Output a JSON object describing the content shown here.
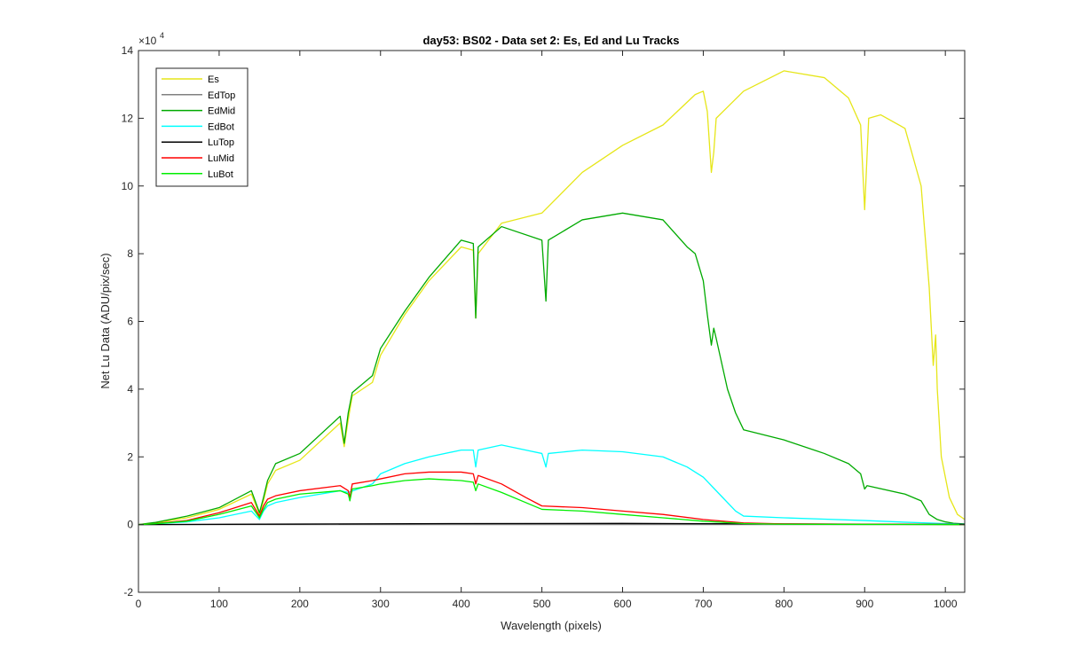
{
  "chart_data": {
    "type": "line",
    "title": "day53: BS02 - Data set 2: Es, Ed and Lu Tracks",
    "xlabel": "Wavelength (pixels)",
    "ylabel": "Net Lu Data (ADU/pix/sec)",
    "y_exponent_label": "×10",
    "y_exponent": "4",
    "xlim": [
      0,
      1024
    ],
    "ylim": [
      -20000,
      140000
    ],
    "xticks": [
      0,
      100,
      200,
      300,
      400,
      500,
      600,
      700,
      800,
      900,
      1000
    ],
    "yticks": [
      -20000,
      0,
      20000,
      40000,
      60000,
      80000,
      100000,
      120000,
      140000
    ],
    "yticklabels": [
      "-2",
      "0",
      "2",
      "4",
      "6",
      "8",
      "10",
      "12",
      "14"
    ],
    "grid": false,
    "legend_position": "top-left",
    "series": [
      {
        "name": "Es",
        "color": "#e6e619",
        "x": [
          0,
          20,
          60,
          100,
          140,
          150,
          155,
          160,
          170,
          200,
          250,
          255,
          260,
          265,
          290,
          300,
          330,
          360,
          400,
          415,
          418,
          421,
          450,
          500,
          550,
          600,
          650,
          690,
          700,
          705,
          710,
          713,
          716,
          750,
          800,
          850,
          880,
          895,
          900,
          905,
          920,
          950,
          970,
          980,
          985,
          988,
          990,
          995,
          1005,
          1015,
          1024
        ],
        "y": [
          0,
          500,
          2000,
          4500,
          9000,
          3000,
          7000,
          12000,
          16000,
          19000,
          30000,
          23000,
          31000,
          38000,
          42000,
          50000,
          62000,
          72000,
          82000,
          81000,
          61000,
          80000,
          89000,
          92000,
          104000,
          112000,
          118000,
          127000,
          128000,
          122000,
          104000,
          110000,
          120000,
          128000,
          134000,
          132000,
          126000,
          118000,
          93000,
          120000,
          121000,
          117000,
          100000,
          70000,
          47000,
          56000,
          40000,
          20000,
          8000,
          3000,
          1500
        ]
      },
      {
        "name": "EdTop",
        "color": "#808080",
        "x": [
          0,
          200,
          400,
          600,
          800,
          1024
        ],
        "y": [
          0,
          0,
          0,
          0,
          0,
          0
        ]
      },
      {
        "name": "EdMid",
        "color": "#00aa00",
        "x": [
          0,
          20,
          60,
          100,
          140,
          150,
          155,
          160,
          170,
          200,
          250,
          255,
          260,
          265,
          290,
          300,
          330,
          360,
          400,
          415,
          418,
          421,
          450,
          500,
          505,
          508,
          550,
          600,
          650,
          680,
          690,
          700,
          705,
          710,
          713,
          716,
          730,
          740,
          750,
          800,
          850,
          880,
          895,
          900,
          903,
          950,
          970,
          980,
          990,
          1000,
          1010,
          1024
        ],
        "y": [
          0,
          600,
          2500,
          5000,
          10000,
          3500,
          8000,
          13000,
          18000,
          21000,
          32000,
          24000,
          33000,
          39000,
          44000,
          52000,
          63000,
          73000,
          84000,
          83000,
          61000,
          82000,
          88000,
          84000,
          66000,
          84000,
          90000,
          92000,
          90000,
          82000,
          80000,
          72000,
          62000,
          53000,
          58000,
          55000,
          40000,
          33000,
          28000,
          25000,
          21000,
          18000,
          15000,
          10500,
          11500,
          9000,
          7000,
          3000,
          1500,
          800,
          400,
          200
        ]
      },
      {
        "name": "EdBot",
        "color": "#00ffff",
        "x": [
          0,
          20,
          60,
          100,
          140,
          150,
          155,
          160,
          170,
          200,
          250,
          260,
          290,
          300,
          330,
          360,
          400,
          415,
          418,
          421,
          450,
          500,
          505,
          508,
          550,
          600,
          650,
          680,
          700,
          720,
          740,
          750,
          800,
          850,
          900,
          950,
          1000,
          1024
        ],
        "y": [
          0,
          200,
          800,
          2000,
          4000,
          1500,
          4000,
          5500,
          6500,
          8000,
          10000,
          9500,
          12000,
          15000,
          18000,
          20000,
          22000,
          22000,
          17000,
          22000,
          23500,
          21000,
          17000,
          21000,
          22000,
          21500,
          20000,
          17000,
          14000,
          9000,
          4000,
          2500,
          2000,
          1600,
          1200,
          700,
          300,
          100
        ]
      },
      {
        "name": "LuTop",
        "color": "#000000",
        "x": [
          0,
          200,
          400,
          600,
          800,
          1024
        ],
        "y": [
          0,
          150,
          300,
          350,
          200,
          50
        ]
      },
      {
        "name": "LuMid",
        "color": "#ff0000",
        "x": [
          0,
          20,
          60,
          100,
          140,
          150,
          155,
          160,
          170,
          200,
          250,
          260,
          262,
          265,
          290,
          300,
          330,
          360,
          400,
          415,
          418,
          421,
          450,
          480,
          500,
          550,
          600,
          650,
          700,
          750,
          800,
          900,
          1000,
          1024
        ],
        "y": [
          0,
          300,
          1200,
          3500,
          6500,
          2500,
          5500,
          7500,
          8500,
          10000,
          11500,
          10000,
          8000,
          12000,
          13000,
          13500,
          15000,
          15500,
          15500,
          15000,
          12000,
          14500,
          12000,
          8000,
          5500,
          5000,
          4000,
          3000,
          1500,
          500,
          200,
          100,
          50,
          0
        ]
      },
      {
        "name": "LuBot",
        "color": "#00ee00",
        "x": [
          0,
          20,
          60,
          100,
          140,
          150,
          155,
          160,
          170,
          200,
          250,
          260,
          262,
          265,
          290,
          300,
          330,
          360,
          400,
          415,
          418,
          421,
          450,
          480,
          500,
          550,
          600,
          650,
          700,
          750,
          800,
          900,
          1000,
          1024
        ],
        "y": [
          0,
          250,
          1000,
          3000,
          5500,
          2000,
          4500,
          6500,
          7500,
          9000,
          10000,
          9000,
          7000,
          10500,
          11500,
          12000,
          13000,
          13500,
          13000,
          12500,
          10000,
          12000,
          9500,
          6500,
          4500,
          4000,
          3000,
          2000,
          1000,
          300,
          100,
          50,
          20,
          0
        ]
      }
    ]
  }
}
